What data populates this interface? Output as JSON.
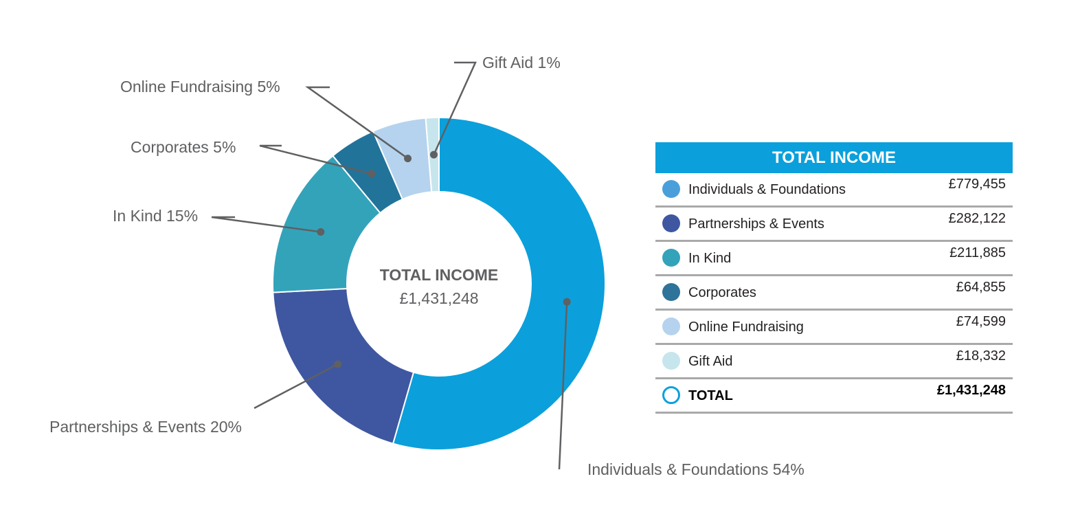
{
  "chart_data": {
    "type": "pie",
    "variant": "donut",
    "center": {
      "title": "TOTAL INCOME",
      "value": "£1,431,248"
    },
    "slices": [
      {
        "name": "Individuals & Foundations",
        "percent": 54,
        "value": 779455,
        "color": "#0ba0db",
        "callout": "Individuals & Foundations 54%"
      },
      {
        "name": "Partnerships & Events",
        "percent": 20,
        "value": 282122,
        "color": "#3f57a0",
        "callout": "Partnerships & Events 20%"
      },
      {
        "name": "In Kind",
        "percent": 15,
        "value": 211885,
        "color": "#33a3ba",
        "callout": "In Kind 15%"
      },
      {
        "name": "Corporates",
        "percent": 5,
        "value": 64855,
        "color": "#22739a",
        "callout": "Corporates 5%"
      },
      {
        "name": "Online Fundraising",
        "percent": 5,
        "value": 74599,
        "color": "#b5d3ee",
        "callout": "Online Fundraising 5%"
      },
      {
        "name": "Gift Aid",
        "percent": 1,
        "value": 18332,
        "color": "#c7e5ec",
        "callout": "Gift Aid 1%"
      }
    ]
  },
  "table": {
    "title": "TOTAL INCOME",
    "header_color": "#0ba0db",
    "rows": [
      {
        "label": "Individuals & Foundations",
        "amount": "£779,455",
        "color": "#4a9fdb"
      },
      {
        "label": "Partnerships & Events",
        "amount": "£282,122",
        "color": "#3f57a0"
      },
      {
        "label": "In Kind",
        "amount": "£211,885",
        "color": "#33a3ba"
      },
      {
        "label": "Corporates",
        "amount": "£64,855",
        "color": "#2e7399"
      },
      {
        "label": "Online Fundraising",
        "amount": "£74,599",
        "color": "#b5d3ee"
      },
      {
        "label": "Gift Aid",
        "amount": "£18,332",
        "color": "#c7e5ec"
      }
    ],
    "total": {
      "label": "TOTAL",
      "amount": "£1,431,248",
      "color": "#0ba0db"
    }
  }
}
